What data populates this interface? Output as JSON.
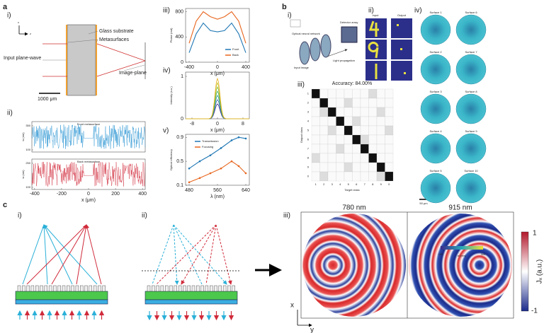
{
  "a": {
    "label": "a",
    "i": {
      "label": "i)",
      "axis_x": "x",
      "axis_z": "z",
      "glass": "Glass substrate",
      "meta": "Metasurfaces",
      "input": "Input plane-wave",
      "image": "Image-plane",
      "scale": "1000 μm"
    },
    "ii": {
      "label": "ii)",
      "front": "Front metasurface",
      "back": "Back metasurface",
      "ylabel": "w (nm)",
      "xlabel": "x (μm)",
      "xlim": [
        -420,
        420
      ],
      "xticks": [
        -400,
        -200,
        0,
        200,
        400
      ],
      "front_yticks": [
        100,
        350
      ],
      "back_yticks": [
        100,
        250
      ]
    },
    "iii": {
      "label": "iii)",
      "type": "line",
      "ylabel": "Phase (rad)",
      "xlabel": "x (μm)",
      "x": [
        -400,
        -300,
        -200,
        -100,
        0,
        100,
        200,
        300,
        400
      ],
      "series": [
        {
          "name": "Front",
          "color": "#1f77b4",
          "values": [
            150,
            450,
            620,
            500,
            480,
            500,
            620,
            450,
            150
          ]
        },
        {
          "name": "Back",
          "color": "#e8661f",
          "values": [
            300,
            650,
            800,
            720,
            680,
            720,
            800,
            650,
            300
          ]
        }
      ],
      "xlim": [
        -450,
        450
      ],
      "ylim": [
        0,
        850
      ],
      "xticks": [
        -400,
        0,
        400
      ],
      "yticks": [
        0,
        400,
        800
      ]
    },
    "iv": {
      "label": "iv)",
      "ylabel": "Intensity (a.u.)",
      "xlabel": "x (μm)",
      "xlim": [
        -10,
        10
      ],
      "ylim": [
        0,
        1.1
      ],
      "xticks": [
        -8,
        0,
        8
      ],
      "yticks": [
        0,
        1
      ]
    },
    "v": {
      "label": "v)",
      "type": "line",
      "ylabel": "Optical efficiency",
      "xlabel": "λ (nm)",
      "x": [
        480,
        510,
        540,
        570,
        600,
        620,
        640
      ],
      "series": [
        {
          "name": "Transmission",
          "color": "#1f77b4",
          "values": [
            0.38,
            0.5,
            0.6,
            0.72,
            0.85,
            0.9,
            0.88
          ]
        },
        {
          "name": "Focusing",
          "color": "#e8661f",
          "values": [
            0.15,
            0.22,
            0.3,
            0.38,
            0.5,
            0.42,
            0.3
          ]
        }
      ],
      "xlim": [
        470,
        650
      ],
      "ylim": [
        0.1,
        0.95
      ],
      "xticks": [
        480,
        560,
        640
      ],
      "yticks": [
        0.1,
        0.5,
        0.9
      ]
    }
  },
  "b": {
    "label": "b",
    "i": {
      "label": "i)",
      "onn": "Optical neural network",
      "detector": "Detector array",
      "input_image": "Input image",
      "light": "Light propagation"
    },
    "ii": {
      "label": "ii)",
      "input": "Input",
      "output": "Output"
    },
    "iii": {
      "label": "iii)",
      "accuracy": "Accuracy: 84.00%",
      "ylabel": "Output class",
      "xlabel": "Target class",
      "classes": [
        "1",
        "2",
        "3",
        "4",
        "5",
        "6",
        "7",
        "8",
        "9",
        "0"
      ]
    },
    "iv": {
      "label": "iv)",
      "surfaces": [
        "Surface 1",
        "Surface 2",
        "Surface 3",
        "Surface 4",
        "Surface 5",
        "Surface 6",
        "Surface 7",
        "Surface 8",
        "Surface 9",
        "Surface 10"
      ],
      "colorbar_label": "w (nm)",
      "colorbar_ticks": [
        120,
        306
      ],
      "scale": "50 μm"
    }
  },
  "c": {
    "label": "c",
    "i": {
      "label": "i)"
    },
    "ii": {
      "label": "ii)"
    },
    "iii": {
      "label": "iii)",
      "left": "780 nm",
      "right": "915 nm",
      "colorbar_label": "Jₓ (a.u.)",
      "colorbar_ticks": [
        1,
        -1
      ],
      "axis_x": "x",
      "axis_y": "y"
    }
  }
}
